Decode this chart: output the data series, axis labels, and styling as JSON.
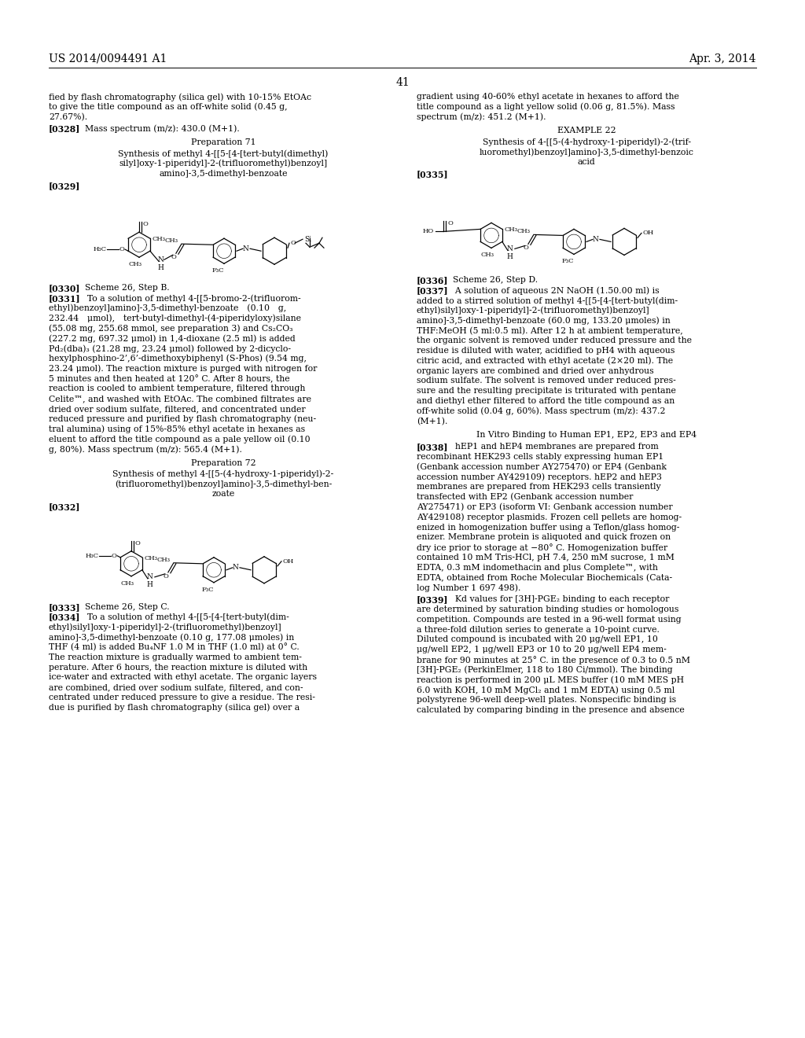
{
  "bg_color": "#ffffff",
  "header_left": "US 2014/0094491 A1",
  "header_right": "Apr. 3, 2014",
  "page_number": "41"
}
